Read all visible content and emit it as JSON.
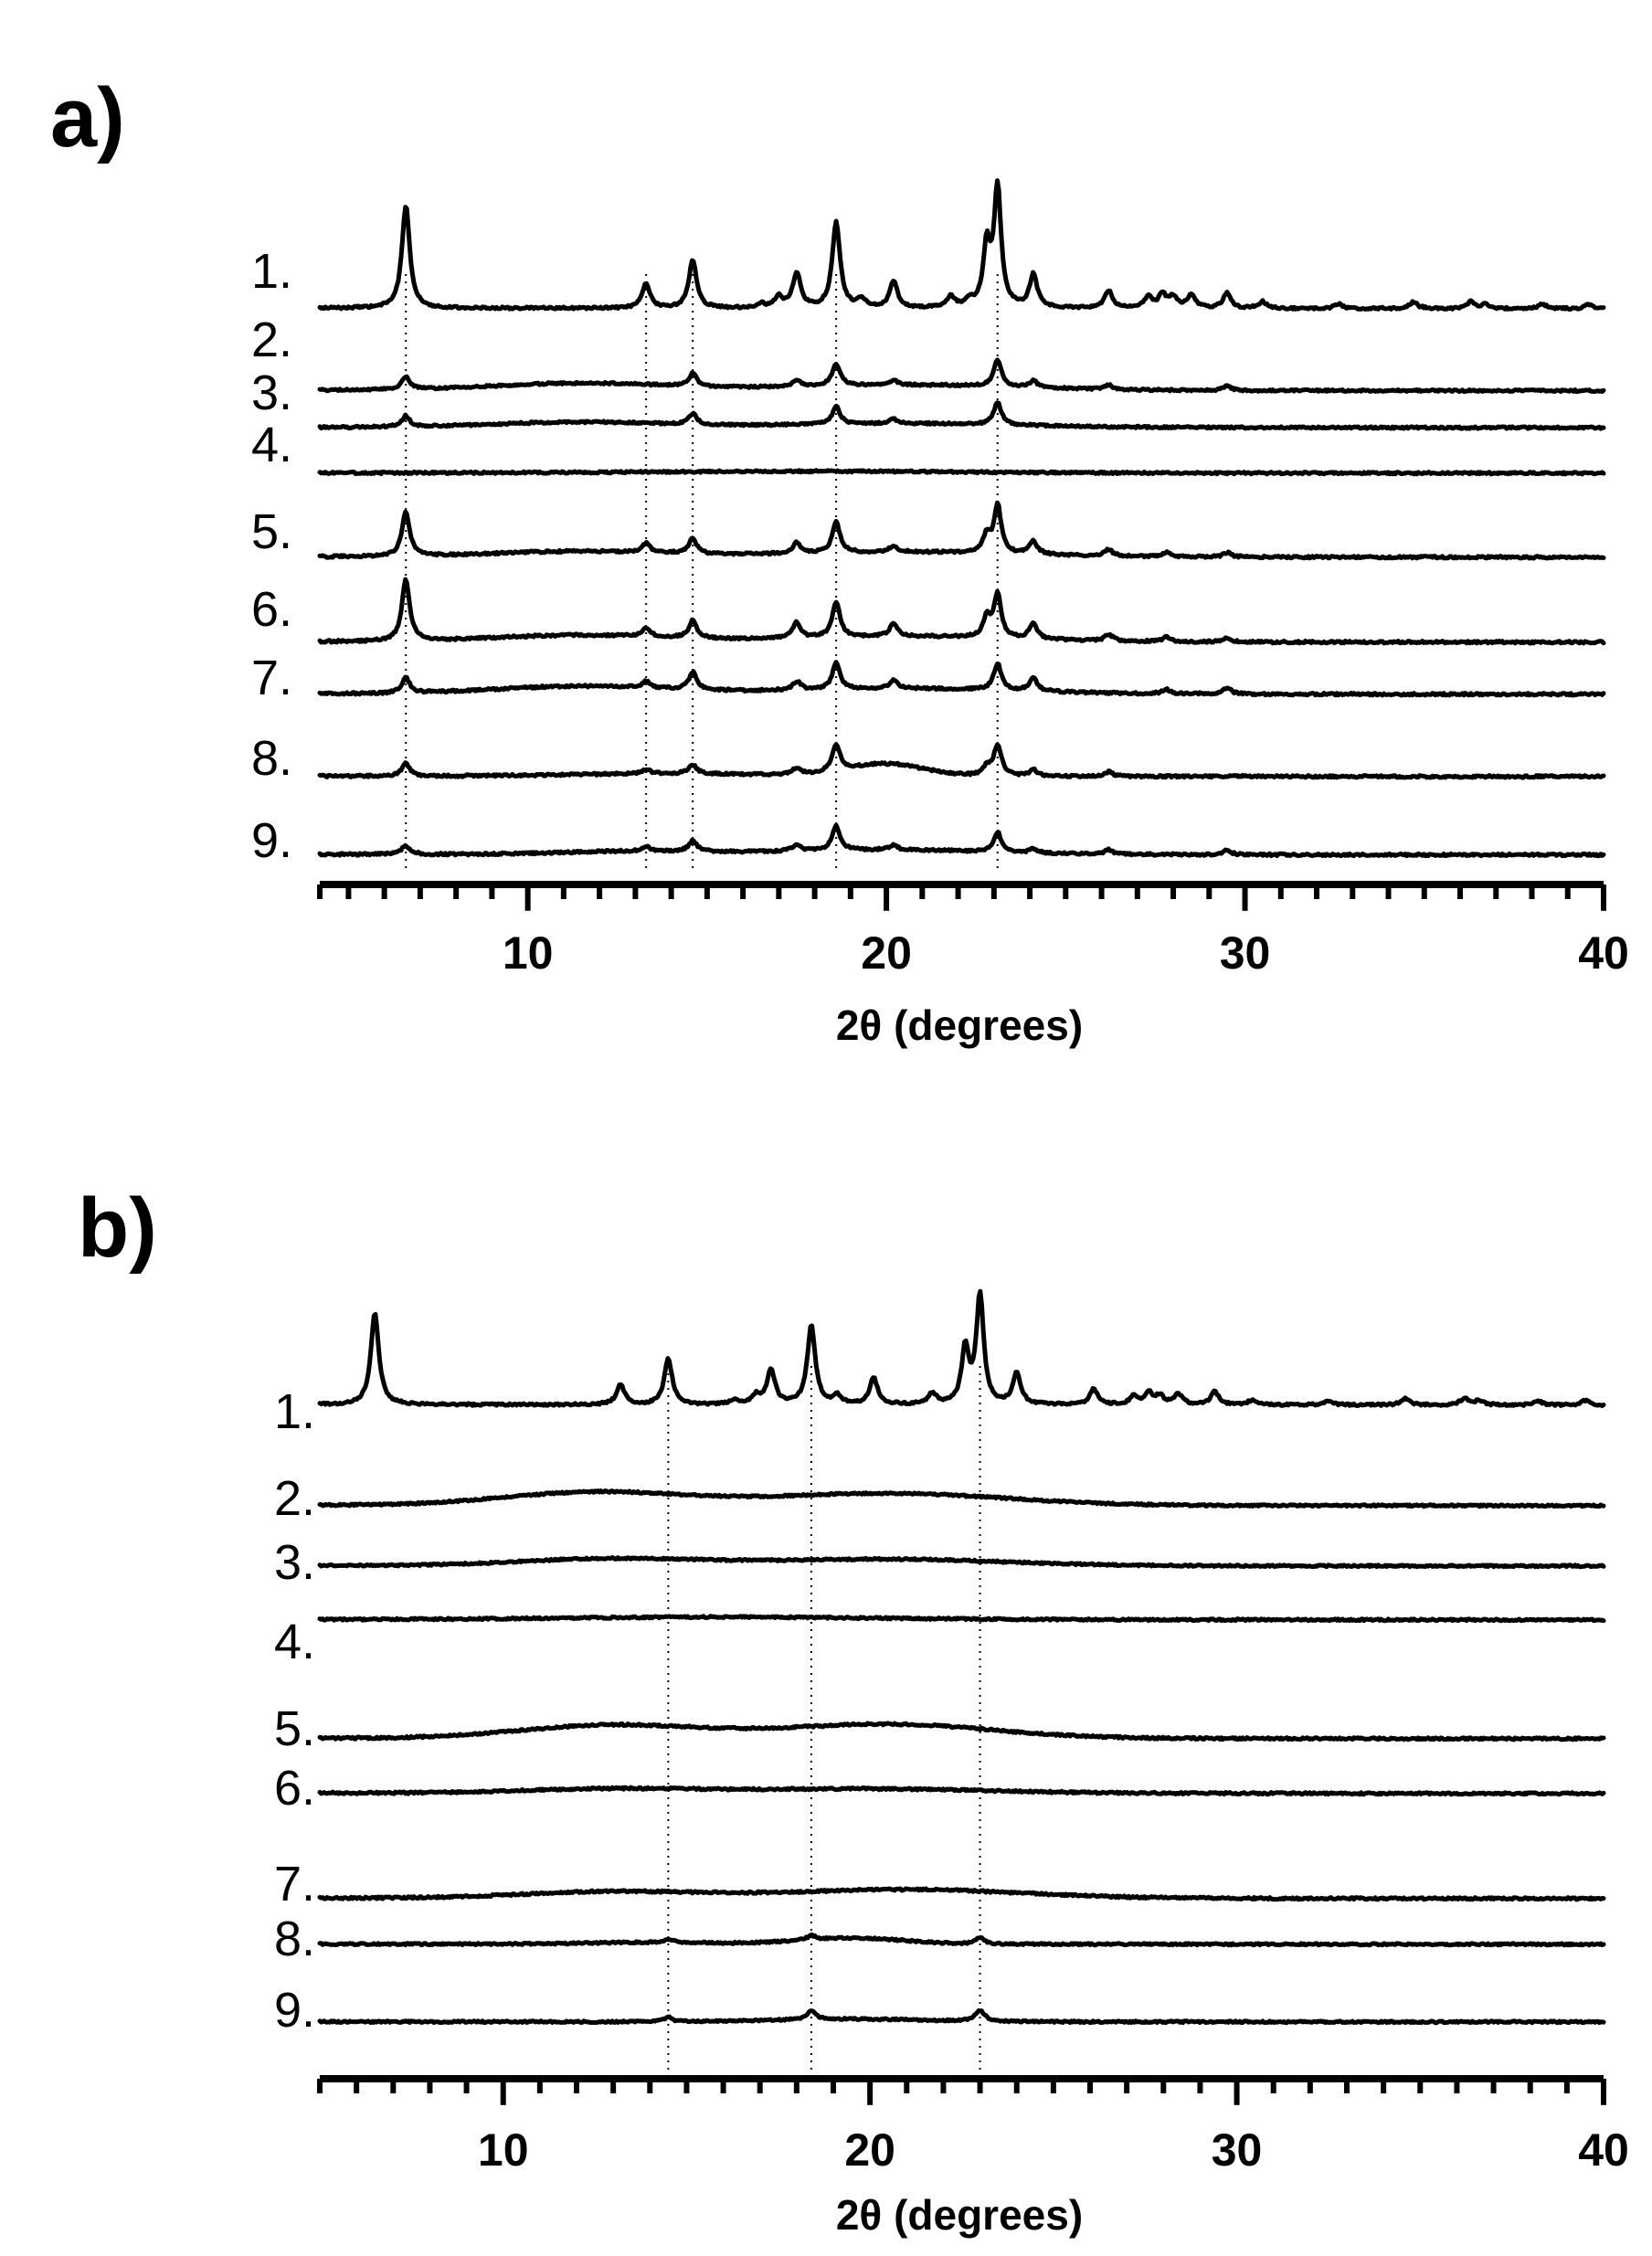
{
  "chart_data": [
    {
      "type": "line",
      "panel_label": "a)",
      "xlabel": "2θ (degrees)",
      "ylabel": "",
      "xlim": [
        4.2,
        40
      ],
      "x_ticks": [
        10,
        20,
        30,
        40
      ],
      "legend": "none",
      "grid": false,
      "reference_lines_x": [
        6.6,
        13.3,
        14.6,
        18.6,
        23.1
      ],
      "series": [
        {
          "label": "1.",
          "baseline": 0.9,
          "slope": 0.12,
          "noise": 0.5,
          "hump": null,
          "peaks": [
            [
              6.6,
              47,
              0.13
            ],
            [
              13.3,
              11,
              0.13
            ],
            [
              14.6,
              22,
              0.13
            ],
            [
              16.5,
              2,
              0.13
            ],
            [
              17.0,
              5,
              0.13
            ],
            [
              17.5,
              16,
              0.13
            ],
            [
              18.6,
              39,
              0.13
            ],
            [
              19.3,
              4,
              0.13
            ],
            [
              20.2,
              12,
              0.13
            ],
            [
              21.8,
              5,
              0.13
            ],
            [
              22.3,
              3,
              0.13
            ],
            [
              22.8,
              27,
              0.12
            ],
            [
              23.1,
              54,
              0.12
            ],
            [
              24.1,
              15,
              0.13
            ],
            [
              26.2,
              8,
              0.13
            ],
            [
              27.3,
              5,
              0.13
            ],
            [
              27.7,
              6,
              0.13
            ],
            [
              28.0,
              5,
              0.13
            ],
            [
              28.5,
              6,
              0.13
            ],
            [
              29.5,
              7,
              0.13
            ],
            [
              30.5,
              3,
              0.13
            ],
            [
              32.6,
              2,
              0.13
            ],
            [
              34.7,
              3,
              0.13
            ],
            [
              36.3,
              3,
              0.13
            ],
            [
              36.7,
              2,
              0.13
            ],
            [
              38.3,
              2,
              0.13
            ],
            [
              39.6,
              2,
              0.13
            ]
          ]
        },
        {
          "label": "2.",
          "baseline": 1.0,
          "slope": 0.15,
          "noise": 0.45,
          "hump": [
            [
              11.5,
              3.2,
              3.5
            ],
            [
              20.5,
              2.5,
              4.5
            ]
          ],
          "peaks": [
            [
              6.6,
              6,
              0.13
            ],
            [
              14.6,
              6,
              0.13
            ],
            [
              17.5,
              3,
              0.13
            ],
            [
              18.6,
              10,
              0.13
            ],
            [
              20.2,
              2,
              0.13
            ],
            [
              23.1,
              12,
              0.13
            ],
            [
              24.1,
              3,
              0.13
            ],
            [
              26.2,
              2,
              0.13
            ],
            [
              29.5,
              2,
              0.13
            ]
          ]
        },
        {
          "label": "3.",
          "baseline": 0.8,
          "slope": 0.1,
          "noise": 0.45,
          "hump": [
            [
              11.5,
              2.4,
              3.5
            ],
            [
              20.5,
              1.8,
              4.5
            ]
          ],
          "peaks": [
            [
              6.6,
              5,
              0.13
            ],
            [
              14.6,
              5,
              0.13
            ],
            [
              18.6,
              8,
              0.13
            ],
            [
              20.2,
              2,
              0.13
            ],
            [
              23.1,
              10,
              0.13
            ]
          ]
        },
        {
          "label": "4.",
          "baseline": 0.9,
          "slope": 0.08,
          "noise": 0.45,
          "hump": [
            [
              18.0,
              0.8,
              6.0
            ]
          ],
          "peaks": []
        },
        {
          "label": "5.",
          "baseline": 0.9,
          "slope": 0.12,
          "noise": 0.5,
          "hump": [
            [
              11.5,
              2.5,
              3.5
            ],
            [
              20.5,
              2.2,
              4.5
            ]
          ],
          "peaks": [
            [
              6.6,
              20,
              0.13
            ],
            [
              13.3,
              4,
              0.13
            ],
            [
              14.6,
              7,
              0.13
            ],
            [
              17.5,
              5,
              0.13
            ],
            [
              18.6,
              14,
              0.13
            ],
            [
              20.2,
              3,
              0.13
            ],
            [
              22.8,
              8,
              0.12
            ],
            [
              23.1,
              22,
              0.12
            ],
            [
              24.1,
              6,
              0.13
            ],
            [
              26.2,
              3,
              0.13
            ],
            [
              27.8,
              2,
              0.13
            ],
            [
              29.5,
              2,
              0.13
            ]
          ]
        },
        {
          "label": "6.",
          "baseline": 0.9,
          "slope": 0.12,
          "noise": 0.5,
          "hump": [
            [
              11.5,
              3.0,
              3.5
            ],
            [
              20.5,
              2.5,
              4.5
            ]
          ],
          "peaks": [
            [
              6.6,
              28,
              0.13
            ],
            [
              13.3,
              4,
              0.13
            ],
            [
              14.6,
              8,
              0.13
            ],
            [
              17.5,
              7,
              0.13
            ],
            [
              18.6,
              16,
              0.13
            ],
            [
              20.2,
              6,
              0.13
            ],
            [
              22.8,
              9,
              0.12
            ],
            [
              23.1,
              20,
              0.12
            ],
            [
              24.1,
              7,
              0.13
            ],
            [
              26.2,
              3,
              0.13
            ],
            [
              27.8,
              2,
              0.13
            ],
            [
              29.5,
              2,
              0.13
            ]
          ]
        },
        {
          "label": "7.",
          "baseline": 0.9,
          "slope": 0.12,
          "noise": 0.5,
          "hump": [
            [
              11.5,
              3.5,
              3.5
            ],
            [
              20.5,
              2.5,
              4.5
            ]
          ],
          "peaks": [
            [
              6.6,
              7,
              0.13
            ],
            [
              13.3,
              3,
              0.13
            ],
            [
              14.6,
              8,
              0.13
            ],
            [
              17.5,
              4,
              0.13
            ],
            [
              18.6,
              12,
              0.13
            ],
            [
              20.2,
              4,
              0.13
            ],
            [
              23.1,
              12,
              0.13
            ],
            [
              24.1,
              6,
              0.13
            ],
            [
              27.8,
              2,
              0.13
            ],
            [
              29.5,
              3,
              0.13
            ]
          ]
        },
        {
          "label": "8.",
          "baseline": 0.9,
          "slope": 0.1,
          "noise": 0.5,
          "hump": [
            [
              20.0,
              5.5,
              1.5
            ],
            [
              14.0,
              1.2,
              4.0
            ]
          ],
          "peaks": [
            [
              6.6,
              6,
              0.13
            ],
            [
              13.3,
              2,
              0.13
            ],
            [
              14.6,
              4,
              0.13
            ],
            [
              17.5,
              3,
              0.13
            ],
            [
              18.6,
              12,
              0.13
            ],
            [
              22.8,
              4,
              0.12
            ],
            [
              23.1,
              14,
              0.13
            ],
            [
              24.1,
              3,
              0.13
            ],
            [
              26.2,
              2,
              0.13
            ]
          ]
        },
        {
          "label": "9.",
          "baseline": 1.0,
          "slope": 0.12,
          "noise": 0.5,
          "hump": [
            [
              20.0,
              2.2,
              4.0
            ],
            [
              13.0,
              1.5,
              3.0
            ]
          ],
          "peaks": [
            [
              6.6,
              4,
              0.15
            ],
            [
              13.3,
              2,
              0.13
            ],
            [
              14.6,
              5,
              0.13
            ],
            [
              17.5,
              3,
              0.13
            ],
            [
              18.6,
              11,
              0.13
            ],
            [
              20.2,
              2,
              0.13
            ],
            [
              23.1,
              9,
              0.13
            ],
            [
              24.1,
              2,
              0.13
            ],
            [
              26.2,
              2,
              0.13
            ],
            [
              29.5,
              2,
              0.13
            ]
          ]
        }
      ]
    },
    {
      "type": "line",
      "panel_label": "b)",
      "xlabel": "2θ (degrees)",
      "ylabel": "",
      "xlim": [
        5,
        40
      ],
      "x_ticks": [
        10,
        20,
        30,
        40
      ],
      "legend": "none",
      "grid": false,
      "reference_lines_x": [
        14.5,
        18.4,
        23.0
      ],
      "series": [
        {
          "label": "1.",
          "baseline": 0.9,
          "slope": 0.12,
          "noise": 0.5,
          "hump": null,
          "peaks": [
            [
              6.5,
              42,
              0.13
            ],
            [
              13.2,
              9,
              0.13
            ],
            [
              14.5,
              21,
              0.13
            ],
            [
              16.3,
              2,
              0.13
            ],
            [
              16.9,
              4,
              0.13
            ],
            [
              17.3,
              16,
              0.13
            ],
            [
              18.4,
              36,
              0.13
            ],
            [
              19.1,
              4,
              0.13
            ],
            [
              20.1,
              12,
              0.13
            ],
            [
              21.7,
              5,
              0.13
            ],
            [
              22.6,
              25,
              0.12
            ],
            [
              23.0,
              50,
              0.12
            ],
            [
              24.0,
              14,
              0.13
            ],
            [
              26.1,
              7,
              0.13
            ],
            [
              27.2,
              4,
              0.13
            ],
            [
              27.6,
              5,
              0.13
            ],
            [
              27.9,
              4,
              0.13
            ],
            [
              28.4,
              5,
              0.13
            ],
            [
              29.4,
              6,
              0.13
            ],
            [
              30.4,
              2,
              0.13
            ],
            [
              32.5,
              2,
              0.13
            ],
            [
              34.6,
              3,
              0.13
            ],
            [
              36.2,
              3,
              0.13
            ],
            [
              36.6,
              2,
              0.13
            ],
            [
              38.2,
              2,
              0.13
            ],
            [
              39.5,
              2,
              0.13
            ]
          ]
        },
        {
          "label": "2.",
          "baseline": 0.9,
          "slope": 0.12,
          "noise": 0.4,
          "hump": [
            [
              12.5,
              6.0,
              3.5
            ],
            [
              20.5,
              5.5,
              4.5
            ]
          ],
          "peaks": []
        },
        {
          "label": "3.",
          "baseline": 0.9,
          "slope": 0.1,
          "noise": 0.4,
          "hump": [
            [
              13.0,
              3.2,
              3.5
            ],
            [
              20.5,
              3.0,
              4.5
            ]
          ],
          "peaks": []
        },
        {
          "label": "4.",
          "baseline": 0.9,
          "slope": 0.1,
          "noise": 0.4,
          "hump": [
            [
              16.0,
              1.2,
              6.0
            ]
          ],
          "peaks": []
        },
        {
          "label": "5.",
          "baseline": 0.9,
          "slope": 0.12,
          "noise": 0.45,
          "hump": [
            [
              13.0,
              6.0,
              3.5
            ],
            [
              20.5,
              6.5,
              4.0
            ]
          ],
          "peaks": []
        },
        {
          "label": "6.",
          "baseline": 0.9,
          "slope": 0.12,
          "noise": 0.45,
          "hump": [
            [
              13.0,
              2.0,
              3.5
            ],
            [
              20.0,
              2.0,
              4.5
            ]
          ],
          "peaks": []
        },
        {
          "label": "7.",
          "baseline": 0.9,
          "slope": 0.12,
          "noise": 0.45,
          "hump": [
            [
              13.0,
              3.0,
              3.5
            ],
            [
              21.0,
              4.0,
              4.5
            ]
          ],
          "peaks": []
        },
        {
          "label": "8.",
          "baseline": 0.9,
          "slope": 0.05,
          "noise": 0.4,
          "hump": [
            [
              19.5,
              2.8,
              2.0
            ],
            [
              14.0,
              0.8,
              2.5
            ]
          ],
          "peaks": [
            [
              14.5,
              1.5,
              0.13
            ],
            [
              18.4,
              2.0,
              0.13
            ],
            [
              23.0,
              3.0,
              0.13
            ]
          ]
        },
        {
          "label": "9.",
          "baseline": 0.9,
          "slope": 0.05,
          "noise": 0.4,
          "hump": [
            [
              19.5,
              1.2,
              3.0
            ]
          ],
          "peaks": [
            [
              14.5,
              2,
              0.13
            ],
            [
              18.4,
              4,
              0.15
            ],
            [
              23.0,
              5,
              0.15
            ]
          ]
        }
      ]
    }
  ]
}
